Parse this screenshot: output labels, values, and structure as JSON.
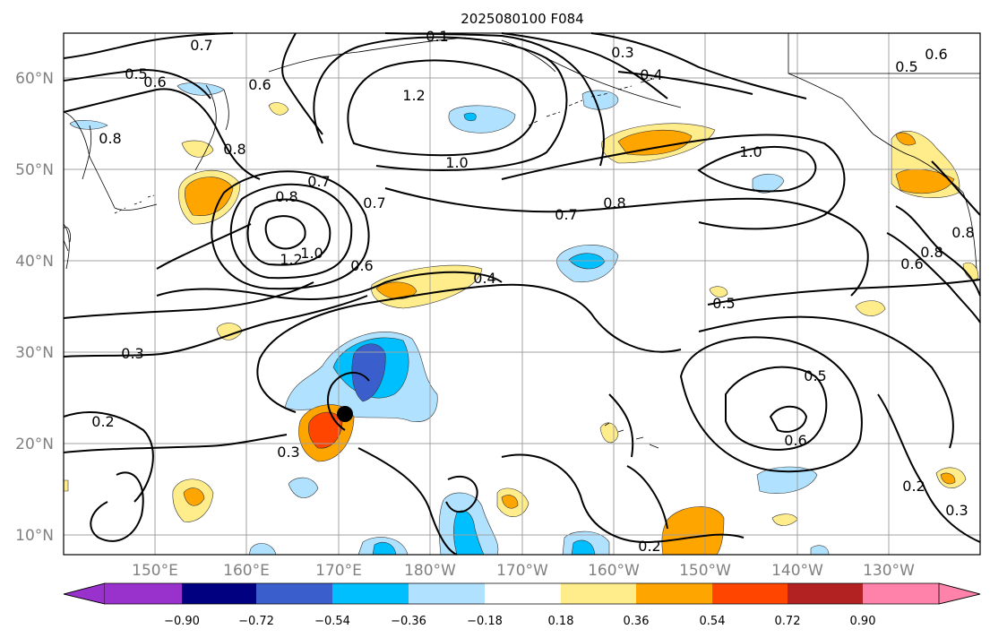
{
  "title": "2025080100 F084",
  "axes": {
    "lat_labels": [
      "60°N",
      "50°N",
      "40°N",
      "30°N",
      "20°N",
      "10°N"
    ],
    "lon_labels": [
      "150°E",
      "160°E",
      "170°E",
      "180°W",
      "170°W",
      "160°W",
      "150°W",
      "140°W",
      "130°W"
    ]
  },
  "colorbar": {
    "labels": [
      "−0.90",
      "−0.72",
      "−0.54",
      "−0.36",
      "−0.18",
      "0.18",
      "0.36",
      "0.54",
      "0.72",
      "0.90"
    ],
    "colors": [
      "#9932cc",
      "#000080",
      "#3a5fcd",
      "#00bfff",
      "#b0e2ff",
      "#ffffff",
      "#ffec8b",
      "#ffa500",
      "#ff4500",
      "#b22222",
      "#ff82ab"
    ]
  },
  "contour_labels": [
    "0.7",
    "0.5",
    "0.6",
    "0.6",
    "0.8",
    "0.8",
    "0.1",
    "1.2",
    "0.3",
    "0.4",
    "0.5",
    "0.6",
    "1.0",
    "1.0",
    "0.7",
    "0.8",
    "0.7",
    "0.8",
    "1.2",
    "1.0",
    "0.6",
    "0.4",
    "0.5",
    "0.7",
    "0.8",
    "0.8",
    "0.6",
    "0.3",
    "0.2",
    "0.5",
    "0.6",
    "0.3",
    "0.2",
    "0.2",
    "0.3"
  ],
  "colors": {
    "marker": "#000000",
    "grid": "#a0a0a0",
    "land_line": "#000000"
  }
}
